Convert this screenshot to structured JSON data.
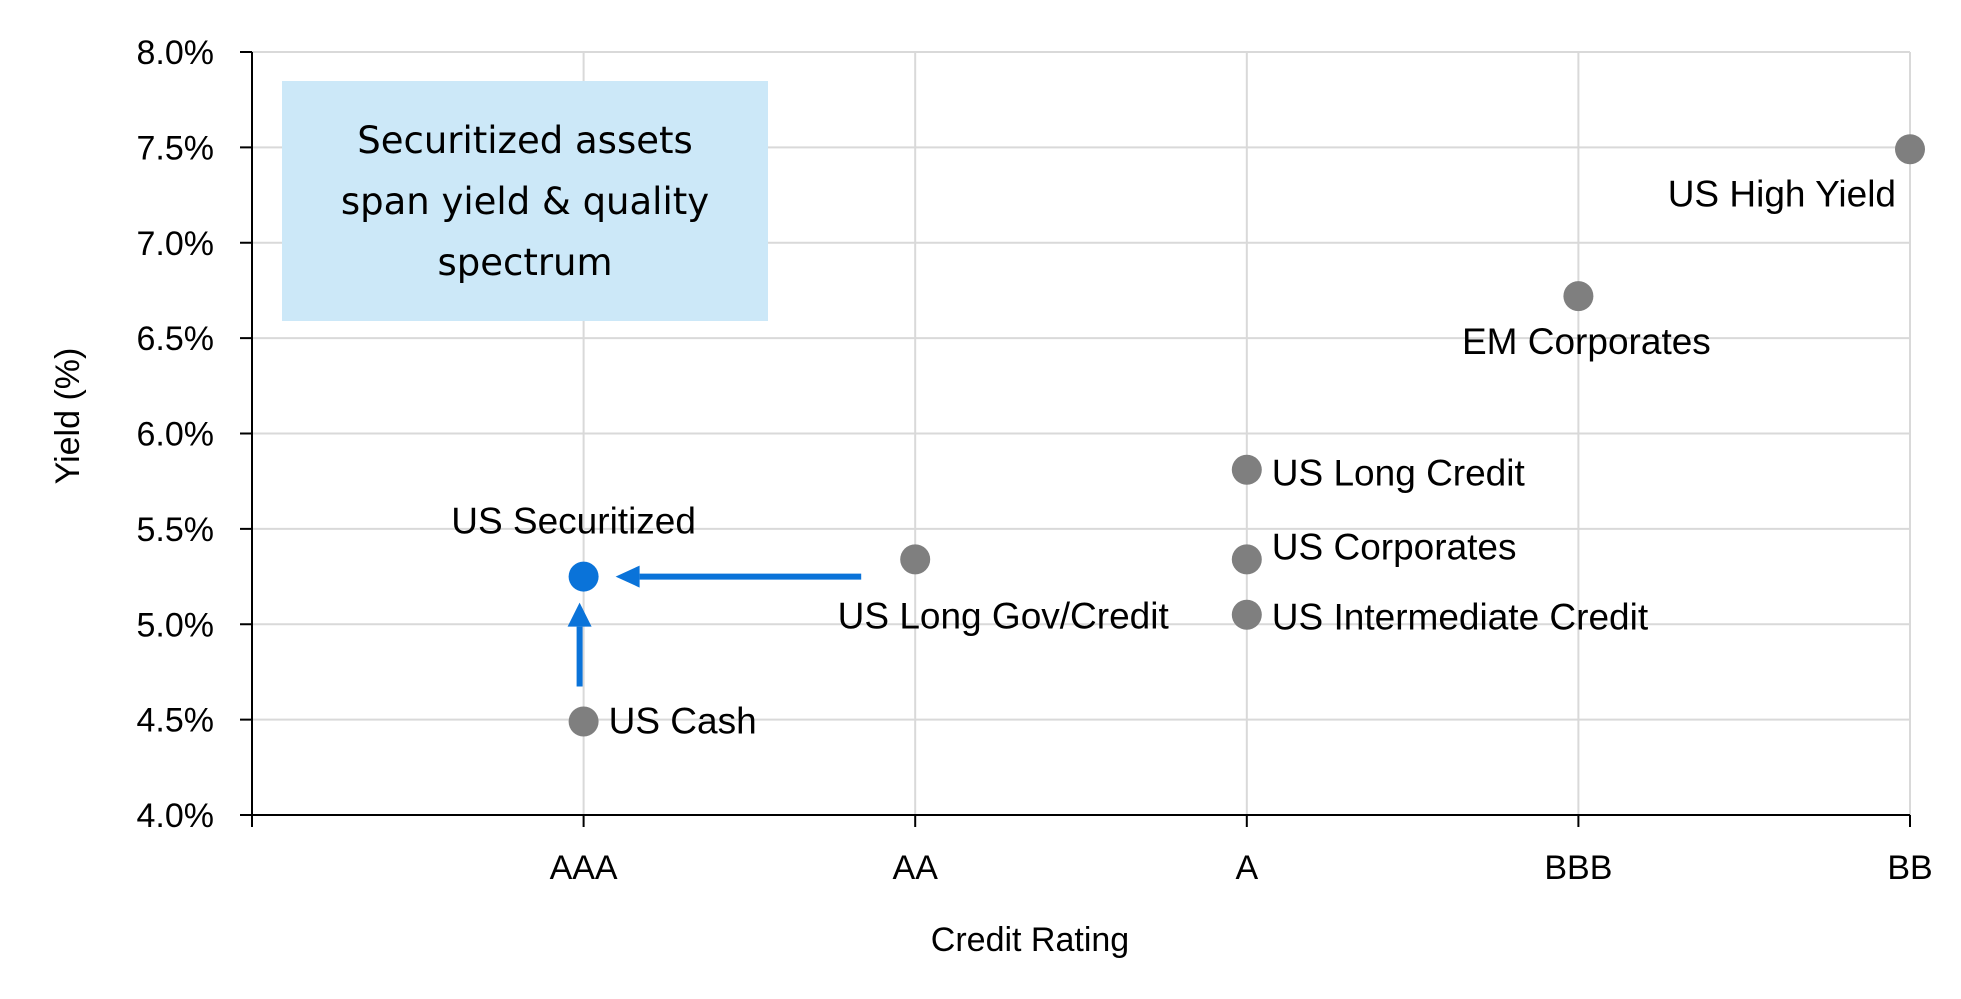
{
  "chart_data": {
    "type": "scatter",
    "xlabel": "Credit Rating",
    "ylabel": "Yield (%)",
    "categories": [
      "AAA",
      "AA",
      "A",
      "BBB",
      "BB"
    ],
    "ylim": [
      4.0,
      8.0
    ],
    "yticks": [
      "4.0%",
      "4.5%",
      "5.0%",
      "5.5%",
      "6.0%",
      "6.5%",
      "7.0%",
      "7.5%",
      "8.0%"
    ],
    "grid": true,
    "points": [
      {
        "label": "US Securitized",
        "x": "AAA",
        "y": 5.25,
        "color": "#0a73d9",
        "highlight": true
      },
      {
        "label": "US Cash",
        "x": "AAA",
        "y": 4.49,
        "color": "#7f7f7f"
      },
      {
        "label": "US Long Gov/Credit",
        "x": "AA",
        "y": 5.34,
        "color": "#7f7f7f"
      },
      {
        "label": "US Long Credit",
        "x": "A",
        "y": 5.81,
        "color": "#7f7f7f"
      },
      {
        "label": "US Corporates",
        "x": "A",
        "y": 5.34,
        "color": "#7f7f7f"
      },
      {
        "label": "US Intermediate Credit",
        "x": "A",
        "y": 5.05,
        "color": "#7f7f7f"
      },
      {
        "label": "EM Corporates",
        "x": "BBB",
        "y": 6.72,
        "color": "#7f7f7f"
      },
      {
        "label": "US High Yield",
        "x": "BB",
        "y": 7.49,
        "color": "#7f7f7f"
      }
    ],
    "arrows": [
      {
        "from_point": "US Cash",
        "to_point": "US Securitized",
        "color": "#0a73d9"
      },
      {
        "from_point": "US Long Gov/Credit",
        "to_point": "US Securitized",
        "color": "#0a73d9"
      }
    ],
    "annotation": {
      "lines": [
        "Securitized assets",
        "span yield & quality",
        "spectrum"
      ],
      "background": "#cce8f8"
    }
  }
}
